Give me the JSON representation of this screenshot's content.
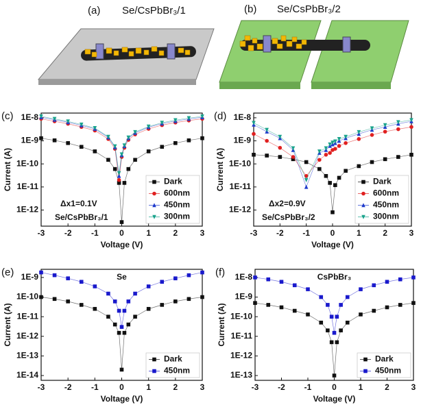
{
  "schematics": [
    {
      "label": "(a)",
      "title": "Se/CsPbBr₃/1"
    },
    {
      "label": "(b)",
      "title": "Se/CsPbBr₃/2"
    }
  ],
  "chart_data": [
    {
      "type": "line",
      "panel": "(c)",
      "xlabel": "Voltage (V)",
      "ylabel": "Current (A)",
      "log_y": true,
      "legend": "lower right",
      "annotations": [
        "Δx1=0.1V",
        "Se/CsPbBr₃/1"
      ],
      "xlim": [
        -3,
        3
      ],
      "ylim": [
        2e-13,
        1.6e-08
      ],
      "xticks": [
        -3,
        -2,
        -1,
        0,
        1,
        2,
        3
      ],
      "yticks": [
        {
          "value": 1e-12,
          "label": "1E-12"
        },
        {
          "value": 1e-11,
          "label": "1E-11"
        },
        {
          "value": 1e-10,
          "label": "1E-10"
        },
        {
          "value": 1e-09,
          "label": "1E-9"
        },
        {
          "value": 1e-08,
          "label": "1E-8"
        }
      ],
      "x": [
        -3,
        -2.5,
        -2,
        -1.5,
        -1,
        -0.5,
        -0.25,
        -0.1,
        0,
        0.1,
        0.25,
        0.5,
        1,
        1.5,
        2,
        2.5,
        3
      ],
      "series": [
        {
          "name": "Dark",
          "color": "#111111",
          "marker": "square",
          "values": [
            1.3e-09,
            1.05e-09,
            8e-10,
            5.5e-10,
            3.5e-10,
            1.5e-10,
            6e-11,
            1.5e-11,
            3e-13,
            1.5e-11,
            6e-11,
            1.5e-10,
            3.5e-10,
            5.5e-10,
            8e-10,
            1.05e-09,
            1.3e-09
          ]
        },
        {
          "name": "600nm",
          "color": "#e02020",
          "marker": "circle",
          "values": [
            9e-09,
            7e-09,
            5.5e-09,
            4e-09,
            2.8e-09,
            1.2e-09,
            4.5e-10,
            2e-11,
            2e-10,
            5e-10,
            1.1e-09,
            1.9e-09,
            3.3e-09,
            4.8e-09,
            6.2e-09,
            7.6e-09,
            9e-09
          ]
        },
        {
          "name": "450nm",
          "color": "#1f3bcc",
          "marker": "triangle-up",
          "values": [
            1.05e-08,
            8.2e-09,
            6.4e-09,
            4.7e-09,
            3.3e-09,
            1.4e-09,
            5.3e-10,
            3e-11,
            2.4e-10,
            5.9e-10,
            1.3e-09,
            2.2e-09,
            3.9e-09,
            5.6e-09,
            7.2e-09,
            8.9e-09,
            1.05e-08
          ]
        },
        {
          "name": "300nm",
          "color": "#1aa38c",
          "marker": "triangle-down",
          "values": [
            1.15e-08,
            9e-09,
            7e-09,
            5.1e-09,
            3.6e-09,
            1.5e-09,
            5.8e-10,
            4e-11,
            2.6e-10,
            6.4e-10,
            1.4e-09,
            2.4e-09,
            4.2e-09,
            6.1e-09,
            7.9e-09,
            9.7e-09,
            1.15e-08
          ]
        }
      ]
    },
    {
      "type": "line",
      "panel": "(d)",
      "xlabel": "Voltage (V)",
      "ylabel": "Current (A)",
      "log_y": true,
      "legend": "lower right",
      "annotations": [
        "Δx2=0.9V",
        "Se/CsPbBr₃/2"
      ],
      "xlim": [
        -3,
        3
      ],
      "ylim": [
        2e-13,
        1.6e-08
      ],
      "xticks": [
        -3,
        -2,
        -1,
        0,
        1,
        2,
        3
      ],
      "yticks": [
        {
          "value": 1e-12,
          "label": "1E-12"
        },
        {
          "value": 1e-11,
          "label": "1E-11"
        },
        {
          "value": 1e-10,
          "label": "1E-10"
        },
        {
          "value": 1e-09,
          "label": "1E-9"
        },
        {
          "value": 1e-08,
          "label": "1E-8"
        }
      ],
      "x": [
        -3,
        -2.5,
        -2,
        -1.5,
        -1,
        -0.5,
        -0.25,
        -0.1,
        0,
        0.1,
        0.25,
        0.5,
        1,
        1.5,
        2,
        2.5,
        3
      ],
      "series": [
        {
          "name": "Dark",
          "color": "#111111",
          "marker": "square",
          "values": [
            2.5e-10,
            2.3e-10,
            2e-10,
            1.6e-10,
            1.2e-10,
            6e-11,
            3e-11,
            1.5e-11,
            8e-13,
            1.2e-11,
            2.5e-11,
            5e-11,
            8e-11,
            1.2e-10,
            1.6e-10,
            2e-10,
            2.5e-10
          ]
        },
        {
          "name": "600nm",
          "color": "#e02020",
          "marker": "circle",
          "values": [
            2e-09,
            1e-09,
            5e-10,
            2e-10,
            3e-11,
            1.5e-10,
            2.5e-10,
            3e-10,
            4e-10,
            4.5e-10,
            6e-10,
            8e-10,
            1.2e-09,
            1.8e-09,
            2.5e-09,
            3.2e-09,
            4e-09
          ]
        },
        {
          "name": "450nm",
          "color": "#1f3bcc",
          "marker": "triangle-up",
          "values": [
            5e-09,
            2.5e-09,
            1.3e-09,
            4e-10,
            1e-11,
            3e-10,
            4e-10,
            6e-10,
            7e-10,
            8e-10,
            1e-09,
            1.3e-09,
            2e-09,
            3e-09,
            4e-09,
            5.5e-09,
            7e-09
          ]
        },
        {
          "name": "300nm",
          "color": "#1aa38c",
          "marker": "triangle-down",
          "values": [
            6e-09,
            3e-09,
            1.5e-09,
            4.8e-10,
            2e-11,
            3.5e-10,
            4.8e-10,
            7e-10,
            8.5e-10,
            9.5e-10,
            1.2e-09,
            1.5e-09,
            2.4e-09,
            3.5e-09,
            4.8e-09,
            6.5e-09,
            8e-09
          ]
        }
      ]
    },
    {
      "type": "line",
      "panel": "(e)",
      "title": "Se",
      "xlabel": "Voltage (V)",
      "ylabel": "Current (A)",
      "log_y": true,
      "legend": "lower right",
      "xlim": [
        -3,
        3
      ],
      "ylim": [
        5.7e-15,
        2.6e-09
      ],
      "xticks": [
        -3,
        -2,
        -1,
        0,
        1,
        2,
        3
      ],
      "yticks": [
        {
          "value": 1e-14,
          "label": "1E-14"
        },
        {
          "value": 1e-13,
          "label": "1E-13"
        },
        {
          "value": 1e-12,
          "label": "1E-12"
        },
        {
          "value": 1e-11,
          "label": "1E-11"
        },
        {
          "value": 1e-10,
          "label": "1E-10"
        },
        {
          "value": 1e-09,
          "label": "1E-9"
        }
      ],
      "x": [
        -3,
        -2.5,
        -2,
        -1.5,
        -1,
        -0.5,
        -0.25,
        -0.1,
        0,
        0.1,
        0.25,
        0.5,
        1,
        1.5,
        2,
        2.5,
        3
      ],
      "series": [
        {
          "name": "Dark",
          "color": "#111111",
          "marker": "square",
          "values": [
            1e-10,
            8e-11,
            6e-11,
            4e-11,
            2.5e-11,
            1e-11,
            4e-12,
            1.5e-12,
            2e-14,
            1.5e-12,
            4e-12,
            1e-11,
            2.5e-11,
            4e-11,
            6e-11,
            8e-11,
            1e-10
          ]
        },
        {
          "name": "450nm",
          "color": "#1a1acc",
          "marker": "square",
          "values": [
            1.8e-09,
            1.3e-09,
            9e-10,
            6e-10,
            3.5e-10,
            1.5e-10,
            6e-11,
            2e-11,
            3e-12,
            2e-11,
            6e-11,
            1.5e-10,
            3.5e-10,
            6e-10,
            9e-10,
            1.3e-09,
            1.8e-09
          ]
        }
      ]
    },
    {
      "type": "line",
      "panel": "(f)",
      "title": "CsPbBr₃",
      "xlabel": "Voltage (V)",
      "ylabel": "Current (A)",
      "log_y": true,
      "legend": "lower right",
      "xlim": [
        -3,
        3
      ],
      "ylim": [
        5.7e-14,
        2.6e-08
      ],
      "xticks": [
        -3,
        -2,
        -1,
        0,
        1,
        2,
        3
      ],
      "yticks": [
        {
          "value": 1e-13,
          "label": "1E-13"
        },
        {
          "value": 1e-12,
          "label": "1E-12"
        },
        {
          "value": 1e-11,
          "label": "1E-11"
        },
        {
          "value": 1e-10,
          "label": "1E-10"
        },
        {
          "value": 1e-09,
          "label": "1E-9"
        },
        {
          "value": 1e-08,
          "label": "1E-8"
        }
      ],
      "x": [
        -3,
        -2.5,
        -2,
        -1.5,
        -1,
        -0.5,
        -0.25,
        -0.1,
        0,
        0.1,
        0.25,
        0.5,
        1,
        1.5,
        2,
        2.5,
        3
      ],
      "series": [
        {
          "name": "Dark",
          "color": "#111111",
          "marker": "square",
          "values": [
            5e-10,
            4e-10,
            3e-10,
            2e-10,
            1.3e-10,
            5e-11,
            2e-11,
            5e-12,
            1e-13,
            5e-12,
            2e-11,
            5e-11,
            1.3e-10,
            2e-10,
            3e-10,
            4e-10,
            5e-10
          ]
        },
        {
          "name": "450nm",
          "color": "#1a1acc",
          "marker": "square",
          "values": [
            1e-08,
            8e-09,
            6e-09,
            4e-09,
            2.5e-09,
            1e-09,
            4e-10,
            1e-10,
            1.5e-11,
            1e-10,
            4e-10,
            1e-09,
            2.5e-09,
            4e-09,
            6e-09,
            8e-09,
            1e-08
          ]
        }
      ]
    }
  ]
}
